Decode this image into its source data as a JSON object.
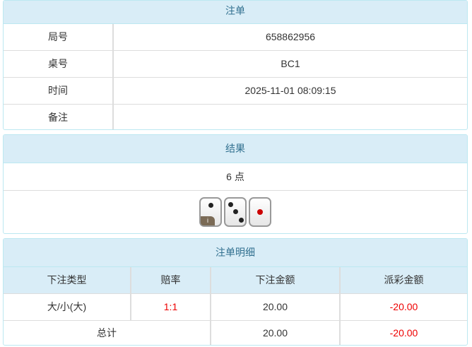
{
  "order": {
    "title": "注单",
    "rows": [
      {
        "label": "局号",
        "value": "658862956"
      },
      {
        "label": "桌号",
        "value": "BC1"
      },
      {
        "label": "时间",
        "value": "2025-11-01 08:09:15"
      },
      {
        "label": "备注",
        "value": ""
      }
    ]
  },
  "result": {
    "title": "结果",
    "points": "6 点",
    "dice": [
      2,
      3,
      1
    ],
    "info_badge": "i"
  },
  "detail": {
    "title": "注单明细",
    "columns": [
      "下注类型",
      "赔率",
      "下注金额",
      "派彩金额"
    ],
    "rows": [
      {
        "type": "大/小(大)",
        "odds": "1:1",
        "bet": "20.00",
        "payout": "-20.00"
      }
    ],
    "total": {
      "label": "总计",
      "bet": "20.00",
      "payout": "-20.00"
    }
  },
  "colors": {
    "header_bg": "#d9edf7",
    "header_text": "#31708f",
    "negative": "#ee0000"
  }
}
